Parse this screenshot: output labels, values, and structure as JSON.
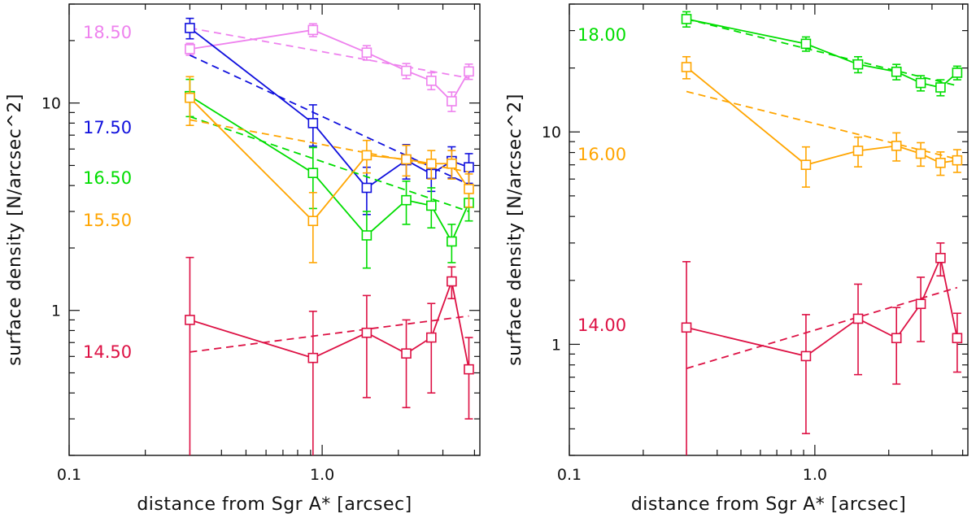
{
  "chart_data": [
    {
      "type": "line",
      "panel": "left",
      "title": "",
      "xlabel": "distance from Sgr A* [arcsec]",
      "ylabel": "surface density [N/arcsec^2]",
      "x_scale": "log",
      "y_scale": "log",
      "xlim": [
        0.1,
        4.2
      ],
      "ylim": [
        0.2,
        30
      ],
      "x_ticks": [
        {
          "value": 0.1,
          "label": "0.1"
        },
        {
          "value": 1.0,
          "label": "1.0"
        }
      ],
      "y_ticks": [
        {
          "value": 1,
          "label": "1"
        },
        {
          "value": 10,
          "label": "10"
        }
      ],
      "series": [
        {
          "name": "18.50",
          "color": "#ee82ee",
          "x": [
            0.3,
            0.92,
            1.5,
            2.15,
            2.7,
            3.25,
            3.8
          ],
          "y": [
            18.2,
            22.5,
            17.5,
            14.3,
            12.8,
            10.2,
            14.2
          ],
          "yerr": [
            1.2,
            1.6,
            1.4,
            1.2,
            1.2,
            1.1,
            1.2
          ],
          "fit": [
            [
              0.3,
              23.0
            ],
            [
              3.8,
              13.2
            ]
          ]
        },
        {
          "name": "17.50",
          "color": "#1010dd",
          "x": [
            0.3,
            0.92,
            1.5,
            2.15,
            2.7,
            3.25,
            3.8
          ],
          "y": [
            23.0,
            8.0,
            3.9,
            5.3,
            4.55,
            5.25,
            4.9
          ],
          "yerr": [
            2.6,
            1.8,
            1.0,
            1.0,
            0.8,
            0.9,
            0.8
          ],
          "fit": [
            [
              0.3,
              17.0
            ],
            [
              3.8,
              4.05
            ]
          ]
        },
        {
          "name": "16.50",
          "color": "#00dd00",
          "x": [
            0.3,
            0.92,
            1.5,
            2.15,
            2.7,
            3.25,
            3.8
          ],
          "y": [
            10.8,
            4.6,
            2.3,
            3.4,
            3.2,
            2.15,
            3.3
          ],
          "yerr": [
            2.2,
            1.5,
            0.7,
            0.8,
            0.7,
            0.45,
            0.6
          ],
          "fit": [
            [
              0.3,
              8.6
            ],
            [
              3.8,
              3.0
            ]
          ]
        },
        {
          "name": "15.50",
          "color": "#ffa500",
          "x": [
            0.3,
            0.92,
            1.5,
            2.15,
            2.7,
            3.25,
            3.8
          ],
          "y": [
            10.6,
            2.7,
            5.6,
            5.35,
            5.1,
            5.1,
            3.85
          ],
          "yerr": [
            2.8,
            1.0,
            1.0,
            0.9,
            0.8,
            0.8,
            0.7
          ],
          "fit": [
            [
              0.3,
              8.3
            ],
            [
              3.8,
              4.65
            ]
          ]
        },
        {
          "name": "14.50",
          "color": "#dd1144",
          "x": [
            0.3,
            0.92,
            1.5,
            2.15,
            2.7,
            3.25,
            3.8
          ],
          "y": [
            0.9,
            0.59,
            0.78,
            0.62,
            0.74,
            1.38,
            0.52
          ],
          "yerr": [
            0.9,
            0.4,
            0.4,
            0.28,
            0.34,
            0.24,
            0.22
          ],
          "fit": [
            [
              0.3,
              0.63
            ],
            [
              3.8,
              0.94
            ]
          ]
        }
      ]
    },
    {
      "type": "line",
      "panel": "right",
      "title": "",
      "xlabel": "distance from Sgr A* [arcsec]",
      "ylabel": "surface density [N/arcsec^2]",
      "x_scale": "log",
      "y_scale": "log",
      "xlim": [
        0.1,
        4.2
      ],
      "ylim": [
        0.3,
        40
      ],
      "x_ticks": [
        {
          "value": 0.1,
          "label": "0.1"
        },
        {
          "value": 1.0,
          "label": "1.0"
        }
      ],
      "y_ticks": [
        {
          "value": 1,
          "label": "1"
        },
        {
          "value": 10,
          "label": "10"
        }
      ],
      "series": [
        {
          "name": "18.00",
          "color": "#00dd00",
          "x": [
            0.3,
            0.92,
            1.5,
            2.15,
            2.7,
            3.25,
            3.8
          ],
          "y": [
            34.0,
            26.0,
            20.8,
            19.2,
            17.0,
            16.2,
            19.0
          ],
          "yerr": [
            2.8,
            2.0,
            1.8,
            1.6,
            1.4,
            1.4,
            1.4
          ],
          "fit": [
            [
              0.3,
              34.0
            ],
            [
              3.8,
              16.5
            ]
          ]
        },
        {
          "name": "16.00",
          "color": "#ffa500",
          "x": [
            0.3,
            0.92,
            1.5,
            2.15,
            2.7,
            3.25,
            3.8
          ],
          "y": [
            20.2,
            7.0,
            8.15,
            8.6,
            7.9,
            7.15,
            7.35
          ],
          "yerr": [
            2.4,
            1.5,
            1.3,
            1.3,
            1.0,
            0.9,
            0.9
          ],
          "fit": [
            [
              0.3,
              15.5
            ],
            [
              3.8,
              7.45
            ]
          ]
        },
        {
          "name": "14.00",
          "color": "#dd1144",
          "x": [
            0.3,
            0.92,
            1.5,
            2.15,
            2.7,
            3.25,
            3.8
          ],
          "y": [
            1.2,
            0.88,
            1.32,
            1.07,
            1.55,
            2.55,
            1.07
          ],
          "yerr": [
            1.25,
            0.5,
            0.6,
            0.42,
            0.52,
            0.45,
            0.33
          ],
          "fit": [
            [
              0.3,
              0.77
            ],
            [
              3.8,
              1.85
            ]
          ]
        }
      ]
    }
  ]
}
